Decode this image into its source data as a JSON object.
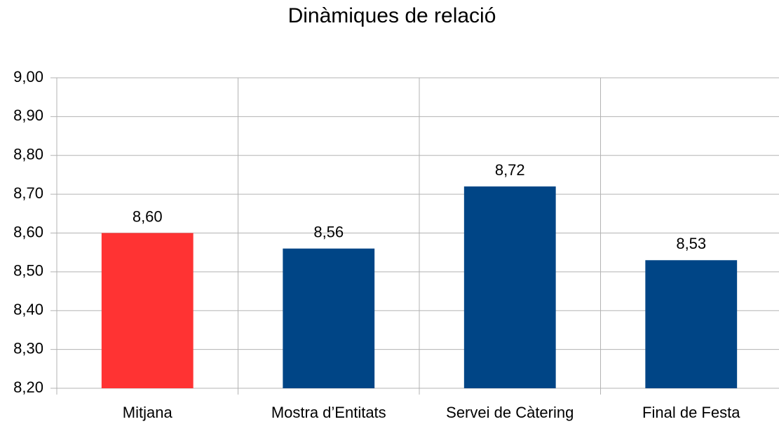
{
  "chart_data": {
    "type": "bar",
    "title": "Dinàmiques de relació",
    "categories": [
      "Mitjana",
      "Mostra d’Entitats",
      "Servei de Càtering",
      "Final de Festa"
    ],
    "values": [
      8.6,
      8.56,
      8.72,
      8.53
    ],
    "value_labels": [
      "8,60",
      "8,56",
      "8,72",
      "8,53"
    ],
    "colors": [
      "#ff3333",
      "#004586",
      "#004586",
      "#004586"
    ],
    "ylim": [
      8.2,
      9.0
    ],
    "yticks": [
      {
        "value": 8.2,
        "label": "8,20"
      },
      {
        "value": 8.3,
        "label": "8,30"
      },
      {
        "value": 8.4,
        "label": "8,40"
      },
      {
        "value": 8.5,
        "label": "8,50"
      },
      {
        "value": 8.6,
        "label": "8,60"
      },
      {
        "value": 8.7,
        "label": "8,70"
      },
      {
        "value": 8.8,
        "label": "8,80"
      },
      {
        "value": 8.9,
        "label": "8,90"
      },
      {
        "value": 9.0,
        "label": "9,00"
      }
    ],
    "grid": true
  }
}
